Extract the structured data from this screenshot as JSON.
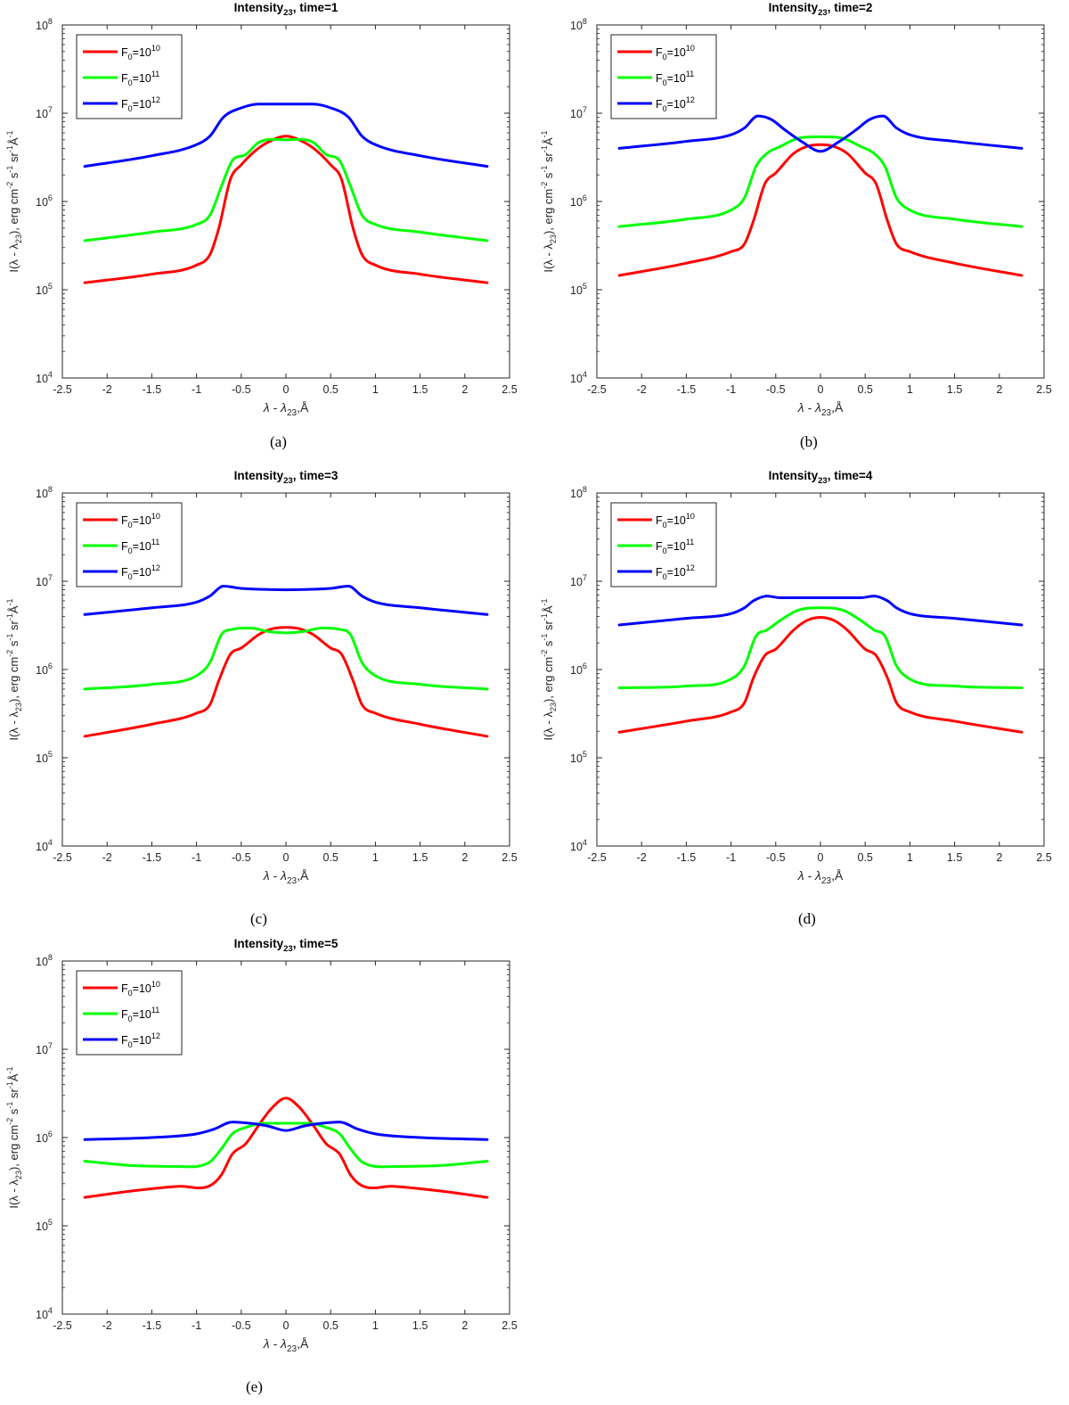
{
  "figure": {
    "captions": [
      "(a)",
      "(b)",
      "(c)",
      "(d)",
      "(e)"
    ]
  },
  "common": {
    "xlabel": "λ - λ23,Å",
    "ylabel": "I(λ - λ23), erg cm-2 s-1 sr-1Å-1",
    "colors": {
      "F0_1e10": "#ff0000",
      "F0_1e11": "#00ff00",
      "F0_1e12": "#0000ff"
    }
  },
  "chart_data": [
    {
      "type": "line",
      "title": "Intensity23, time=1",
      "title_base": "Intensity",
      "title_sub": "23",
      "title_rest": ", time=1",
      "xlabel": "λ - λ23,Å",
      "ylabel": "I(λ - λ23), erg cm-2 s-1 sr-1Å-1",
      "xlim": [
        -2.5,
        2.5
      ],
      "ylim": [
        10000,
        100000000
      ],
      "yscale": "log",
      "xticks": [
        "-2.5",
        "-2",
        "-1.5",
        "-1",
        "-0.5",
        "0",
        "0.5",
        "1",
        "1.5",
        "2",
        "2.5"
      ],
      "yticks": [
        "10^4",
        "10^5",
        "10^6",
        "10^7",
        "10^8"
      ],
      "legend_position": "top-left",
      "series": [
        {
          "name": "F0=10^10",
          "label_base": "F",
          "label_sub": "0",
          "label_mid": "=10",
          "label_sup": "10",
          "color": "#ff0000",
          "x": [
            -2.25,
            -1.5,
            -1.0,
            -0.85,
            -0.75,
            -0.62,
            -0.5,
            -0.35,
            -0.2,
            0,
            0.2,
            0.35,
            0.5,
            0.62,
            0.75,
            0.85,
            1.0,
            1.5,
            2.25
          ],
          "y": [
            120000.0,
            150000.0,
            190000.0,
            250000.0,
            500000.0,
            1800000.0,
            2600000.0,
            3700000.0,
            4700000.0,
            5500000.0,
            4700000.0,
            3700000.0,
            2600000.0,
            1800000.0,
            500000.0,
            250000.0,
            190000.0,
            150000.0,
            120000.0
          ]
        },
        {
          "name": "F0=10^11",
          "label_base": "F",
          "label_sub": "0",
          "label_mid": "=10",
          "label_sup": "11",
          "color": "#00ff00",
          "x": [
            -2.25,
            -1.5,
            -1.0,
            -0.85,
            -0.72,
            -0.6,
            -0.45,
            -0.3,
            0,
            0.3,
            0.45,
            0.6,
            0.72,
            0.85,
            1.0,
            1.5,
            2.25
          ],
          "y": [
            360000.0,
            450000.0,
            550000.0,
            700000.0,
            1500000.0,
            2900000.0,
            3400000.0,
            4700000.0,
            5000000.0,
            4700000.0,
            3400000.0,
            2900000.0,
            1500000.0,
            700000.0,
            550000.0,
            450000.0,
            360000.0
          ]
        },
        {
          "name": "F0=10^12",
          "label_base": "F",
          "label_sub": "0",
          "label_mid": "=10",
          "label_sup": "12",
          "color": "#0000ff",
          "x": [
            -2.25,
            -1.5,
            -1.0,
            -0.85,
            -0.7,
            -0.5,
            -0.3,
            0,
            0.3,
            0.5,
            0.7,
            0.85,
            1.0,
            1.5,
            2.25
          ],
          "y": [
            2500000.0,
            3300000.0,
            4400000.0,
            5500000.0,
            9000000.0,
            11500000.0,
            12700000.0,
            12700000.0,
            12700000.0,
            11500000.0,
            9000000.0,
            5500000.0,
            4400000.0,
            3300000.0,
            2500000.0
          ]
        }
      ]
    },
    {
      "type": "line",
      "title": "Intensity23, time=2",
      "title_base": "Intensity",
      "title_sub": "23",
      "title_rest": ", time=2",
      "xlabel": "λ - λ23,Å",
      "ylabel": "I(λ - λ23), erg cm-2 s-1 sr-1Å-1",
      "xlim": [
        -2.5,
        2.5
      ],
      "ylim": [
        10000,
        100000000
      ],
      "yscale": "log",
      "xticks": [
        "-2.5",
        "-2",
        "-1.5",
        "-1",
        "-0.5",
        "0",
        "0.5",
        "1",
        "1.5",
        "2",
        "2.5"
      ],
      "yticks": [
        "10^4",
        "10^5",
        "10^6",
        "10^7",
        "10^8"
      ],
      "legend_position": "top-left",
      "series": [
        {
          "name": "F0=10^10",
          "label_base": "F",
          "label_sub": "0",
          "label_mid": "=10",
          "label_sup": "10",
          "color": "#ff0000",
          "x": [
            -2.25,
            -1.5,
            -1.0,
            -0.85,
            -0.75,
            -0.62,
            -0.5,
            -0.3,
            -0.15,
            0,
            0.15,
            0.3,
            0.5,
            0.62,
            0.75,
            0.85,
            1.0,
            1.5,
            2.25
          ],
          "y": [
            145000.0,
            200000.0,
            270000.0,
            330000.0,
            600000.0,
            1600000.0,
            2100000.0,
            3500000.0,
            4200000.0,
            4400000.0,
            4200000.0,
            3500000.0,
            2100000.0,
            1600000.0,
            600000.0,
            330000.0,
            270000.0,
            200000.0,
            145000.0
          ]
        },
        {
          "name": "F0=10^11",
          "label_base": "F",
          "label_sub": "0",
          "label_mid": "=10",
          "label_sup": "11",
          "color": "#00ff00",
          "x": [
            -2.25,
            -1.5,
            -1.0,
            -0.85,
            -0.72,
            -0.6,
            -0.45,
            -0.25,
            0,
            0.25,
            0.45,
            0.6,
            0.72,
            0.85,
            1.0,
            1.5,
            2.25
          ],
          "y": [
            520000.0,
            630000.0,
            800000.0,
            1100000.0,
            2500000.0,
            3500000.0,
            4200000.0,
            5200000.0,
            5400000.0,
            5200000.0,
            4200000.0,
            3500000.0,
            2500000.0,
            1100000.0,
            800000.0,
            630000.0,
            520000.0
          ]
        },
        {
          "name": "F0=10^12",
          "label_base": "F",
          "label_sub": "0",
          "label_mid": "=10",
          "label_sup": "12",
          "color": "#0000ff",
          "x": [
            -2.25,
            -1.5,
            -1.0,
            -0.85,
            -0.7,
            -0.55,
            -0.4,
            -0.2,
            0,
            0.2,
            0.4,
            0.55,
            0.7,
            0.85,
            1.0,
            1.5,
            2.25
          ],
          "y": [
            4000000.0,
            4800000.0,
            5700000.0,
            6800000.0,
            9300000.0,
            8500000.0,
            6500000.0,
            4700000.0,
            3700000.0,
            4700000.0,
            6500000.0,
            8500000.0,
            9300000.0,
            6800000.0,
            5700000.0,
            4800000.0,
            4000000.0
          ]
        }
      ]
    },
    {
      "type": "line",
      "title": "Intensity23, time=3",
      "title_base": "Intensity",
      "title_sub": "23",
      "title_rest": ", time=3",
      "xlabel": "λ - λ23,Å",
      "ylabel": "I(λ - λ23), erg cm-2 s-1 sr-1Å-1",
      "xlim": [
        -2.5,
        2.5
      ],
      "ylim": [
        10000,
        100000000
      ],
      "yscale": "log",
      "xticks": [
        "-2.5",
        "-2",
        "-1.5",
        "-1",
        "-0.5",
        "0",
        "0.5",
        "1",
        "1.5",
        "2",
        "2.5"
      ],
      "yticks": [
        "10^4",
        "10^5",
        "10^6",
        "10^7",
        "10^8"
      ],
      "legend_position": "top-left",
      "series": [
        {
          "name": "F0=10^10",
          "label_base": "F",
          "label_sub": "0",
          "label_mid": "=10",
          "label_sup": "10",
          "color": "#ff0000",
          "x": [
            -2.25,
            -1.5,
            -1.0,
            -0.85,
            -0.75,
            -0.62,
            -0.5,
            -0.3,
            -0.15,
            0,
            0.15,
            0.3,
            0.5,
            0.62,
            0.75,
            0.85,
            1.0,
            1.5,
            2.25
          ],
          "y": [
            175000.0,
            240000.0,
            320000.0,
            400000.0,
            750000.0,
            1500000.0,
            1750000.0,
            2500000.0,
            2900000.0,
            3000000.0,
            2900000.0,
            2500000.0,
            1750000.0,
            1500000.0,
            750000.0,
            400000.0,
            320000.0,
            240000.0,
            175000.0
          ]
        },
        {
          "name": "F0=10^11",
          "label_base": "F",
          "label_sub": "0",
          "label_mid": "=10",
          "label_sup": "11",
          "color": "#00ff00",
          "x": [
            -2.25,
            -1.5,
            -1.0,
            -0.85,
            -0.72,
            -0.6,
            -0.4,
            -0.2,
            0,
            0.2,
            0.4,
            0.6,
            0.72,
            0.85,
            1.0,
            1.5,
            2.25
          ],
          "y": [
            600000.0,
            680000.0,
            850000.0,
            1200000.0,
            2500000.0,
            2850000.0,
            2950000.0,
            2700000.0,
            2600000.0,
            2700000.0,
            2950000.0,
            2850000.0,
            2500000.0,
            1200000.0,
            850000.0,
            680000.0,
            600000.0
          ]
        },
        {
          "name": "F0=10^12",
          "label_base": "F",
          "label_sub": "0",
          "label_mid": "=10",
          "label_sup": "12",
          "color": "#0000ff",
          "x": [
            -2.25,
            -1.5,
            -1.0,
            -0.85,
            -0.7,
            -0.5,
            -0.3,
            0,
            0.3,
            0.5,
            0.7,
            0.85,
            1.0,
            1.5,
            2.25
          ],
          "y": [
            4200000.0,
            5000000.0,
            5800000.0,
            6800000.0,
            8800000.0,
            8300000.0,
            8100000.0,
            8000000.0,
            8100000.0,
            8300000.0,
            8800000.0,
            6800000.0,
            5800000.0,
            5000000.0,
            4200000.0
          ]
        }
      ]
    },
    {
      "type": "line",
      "title": "Intensity23, time=4",
      "title_base": "Intensity",
      "title_sub": "23",
      "title_rest": ", time=4",
      "xlabel": "λ - λ23,Å",
      "ylabel": "I(λ - λ23), erg cm-2 s-1 sr-1Å-1",
      "xlim": [
        -2.5,
        2.5
      ],
      "ylim": [
        10000,
        100000000
      ],
      "yscale": "log",
      "xticks": [
        "-2.5",
        "-2",
        "-1.5",
        "-1",
        "-0.5",
        "0",
        "0.5",
        "1",
        "1.5",
        "2",
        "2.5"
      ],
      "yticks": [
        "10^4",
        "10^5",
        "10^6",
        "10^7",
        "10^8"
      ],
      "legend_position": "top-left",
      "series": [
        {
          "name": "F0=10^10",
          "label_base": "F",
          "label_sub": "0",
          "label_mid": "=10",
          "label_sup": "10",
          "color": "#ff0000",
          "x": [
            -2.25,
            -1.5,
            -1.0,
            -0.85,
            -0.75,
            -0.62,
            -0.5,
            -0.3,
            -0.15,
            0,
            0.15,
            0.3,
            0.5,
            0.62,
            0.75,
            0.85,
            1.0,
            1.5,
            2.25
          ],
          "y": [
            195000.0,
            260000.0,
            330000.0,
            420000.0,
            800000.0,
            1450000.0,
            1700000.0,
            2800000.0,
            3600000.0,
            3900000.0,
            3600000.0,
            2800000.0,
            1700000.0,
            1450000.0,
            800000.0,
            420000.0,
            330000.0,
            260000.0,
            195000.0
          ]
        },
        {
          "name": "F0=10^11",
          "label_base": "F",
          "label_sub": "0",
          "label_mid": "=10",
          "label_sup": "11",
          "color": "#00ff00",
          "x": [
            -2.25,
            -1.5,
            -1.0,
            -0.85,
            -0.72,
            -0.6,
            -0.45,
            -0.25,
            0,
            0.25,
            0.45,
            0.6,
            0.72,
            0.85,
            1.0,
            1.5,
            2.25
          ],
          "y": [
            620000.0,
            650000.0,
            780000.0,
            1100000.0,
            2400000.0,
            2800000.0,
            3600000.0,
            4700000.0,
            5000000.0,
            4700000.0,
            3600000.0,
            2800000.0,
            2400000.0,
            1100000.0,
            780000.0,
            650000.0,
            620000.0
          ]
        },
        {
          "name": "F0=10^12",
          "label_base": "F",
          "label_sub": "0",
          "label_mid": "=10",
          "label_sup": "12",
          "color": "#0000ff",
          "x": [
            -2.25,
            -1.5,
            -1.0,
            -0.85,
            -0.75,
            -0.6,
            -0.45,
            -0.2,
            0,
            0.2,
            0.45,
            0.6,
            0.75,
            0.85,
            1.0,
            1.5,
            2.25
          ],
          "y": [
            3200000.0,
            3800000.0,
            4300000.0,
            5000000.0,
            6000000.0,
            6800000.0,
            6500000.0,
            6500000.0,
            6500000.0,
            6500000.0,
            6500000.0,
            6800000.0,
            6000000.0,
            5000000.0,
            4300000.0,
            3800000.0,
            3200000.0
          ]
        }
      ]
    },
    {
      "type": "line",
      "title": "Intensity23, time=5",
      "title_base": "Intensity",
      "title_sub": "23",
      "title_rest": ", time=5",
      "xlabel": "λ - λ23,Å",
      "ylabel": "I(λ - λ23), erg cm-2 s-1 sr-1Å-1",
      "xlim": [
        -2.5,
        2.5
      ],
      "ylim": [
        10000,
        100000000
      ],
      "yscale": "log",
      "xticks": [
        "-2.5",
        "-2",
        "-1.5",
        "-1",
        "-0.5",
        "0",
        "0.5",
        "1",
        "1.5",
        "2",
        "2.5"
      ],
      "yticks": [
        "10^4",
        "10^5",
        "10^6",
        "10^7",
        "10^8"
      ],
      "legend_position": "top-left",
      "series": [
        {
          "name": "F0=10^10",
          "label_base": "F",
          "label_sub": "0",
          "label_mid": "=10",
          "label_sup": "10",
          "color": "#ff0000",
          "x": [
            -2.25,
            -1.7,
            -1.2,
            -0.85,
            -0.72,
            -0.6,
            -0.45,
            -0.3,
            -0.15,
            0,
            0.15,
            0.3,
            0.45,
            0.6,
            0.72,
            0.85,
            1.2,
            1.7,
            2.25
          ],
          "y": [
            210000.0,
            250000.0,
            280000.0,
            285000.0,
            380000.0,
            650000.0,
            850000.0,
            1400000.0,
            2200000.0,
            2800000.0,
            2200000.0,
            1400000.0,
            850000.0,
            650000.0,
            380000.0,
            285000.0,
            280000.0,
            250000.0,
            210000.0
          ]
        },
        {
          "name": "F0=10^11",
          "label_base": "F",
          "label_sub": "0",
          "label_mid": "=10",
          "label_sup": "11",
          "color": "#00ff00",
          "x": [
            -2.25,
            -1.7,
            -1.2,
            -0.85,
            -0.72,
            -0.6,
            -0.45,
            -0.25,
            0,
            0.25,
            0.45,
            0.6,
            0.72,
            0.85,
            1.2,
            1.7,
            2.25
          ],
          "y": [
            540000.0,
            480000.0,
            470000.0,
            530000.0,
            750000.0,
            1100000.0,
            1300000.0,
            1450000.0,
            1450000.0,
            1450000.0,
            1300000.0,
            1100000.0,
            750000.0,
            530000.0,
            470000.0,
            480000.0,
            540000.0
          ]
        },
        {
          "name": "F0=10^12",
          "label_base": "F",
          "label_sub": "0",
          "label_mid": "=10",
          "label_sup": "12",
          "color": "#0000ff",
          "x": [
            -2.25,
            -1.5,
            -1.0,
            -0.8,
            -0.6,
            -0.4,
            -0.2,
            0,
            0.2,
            0.4,
            0.6,
            0.8,
            1.0,
            1.5,
            2.25
          ],
          "y": [
            950000.0,
            1000000.0,
            1100000.0,
            1250000.0,
            1500000.0,
            1450000.0,
            1350000.0,
            1200000.0,
            1350000.0,
            1450000.0,
            1500000.0,
            1250000.0,
            1100000.0,
            1000000.0,
            950000.0
          ]
        }
      ]
    }
  ]
}
